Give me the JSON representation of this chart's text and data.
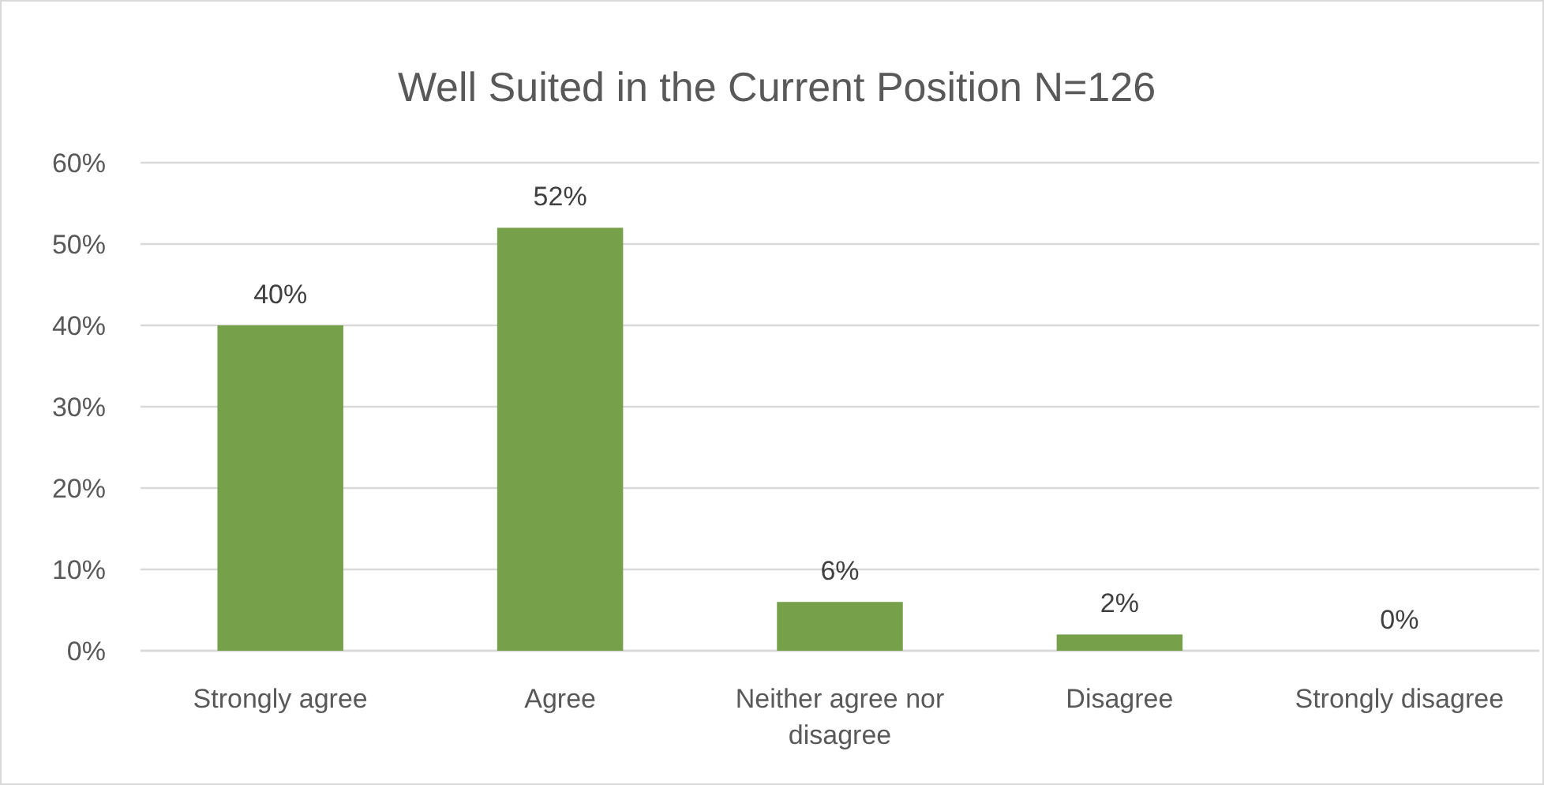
{
  "chart_data": {
    "type": "bar",
    "title": "Well Suited in the Current Position N=126",
    "categories": [
      "Strongly agree",
      "Agree",
      "Neither agree nor disagree",
      "Disagree",
      "Strongly disagree"
    ],
    "values": [
      40,
      52,
      6,
      2,
      0
    ],
    "color": "#77a04a",
    "value_labels": [
      "40%",
      "52%",
      "6%",
      "2%",
      "0%"
    ],
    "ylim": [
      0,
      60
    ],
    "yticks": [
      {
        "value": 0,
        "label": "0%"
      },
      {
        "value": 10,
        "label": "10%"
      },
      {
        "value": 20,
        "label": "20%"
      },
      {
        "value": 30,
        "label": "30%"
      },
      {
        "value": 40,
        "label": "40%"
      },
      {
        "value": 50,
        "label": "50%"
      },
      {
        "value": 60,
        "label": "60%"
      }
    ],
    "grid": "y"
  }
}
